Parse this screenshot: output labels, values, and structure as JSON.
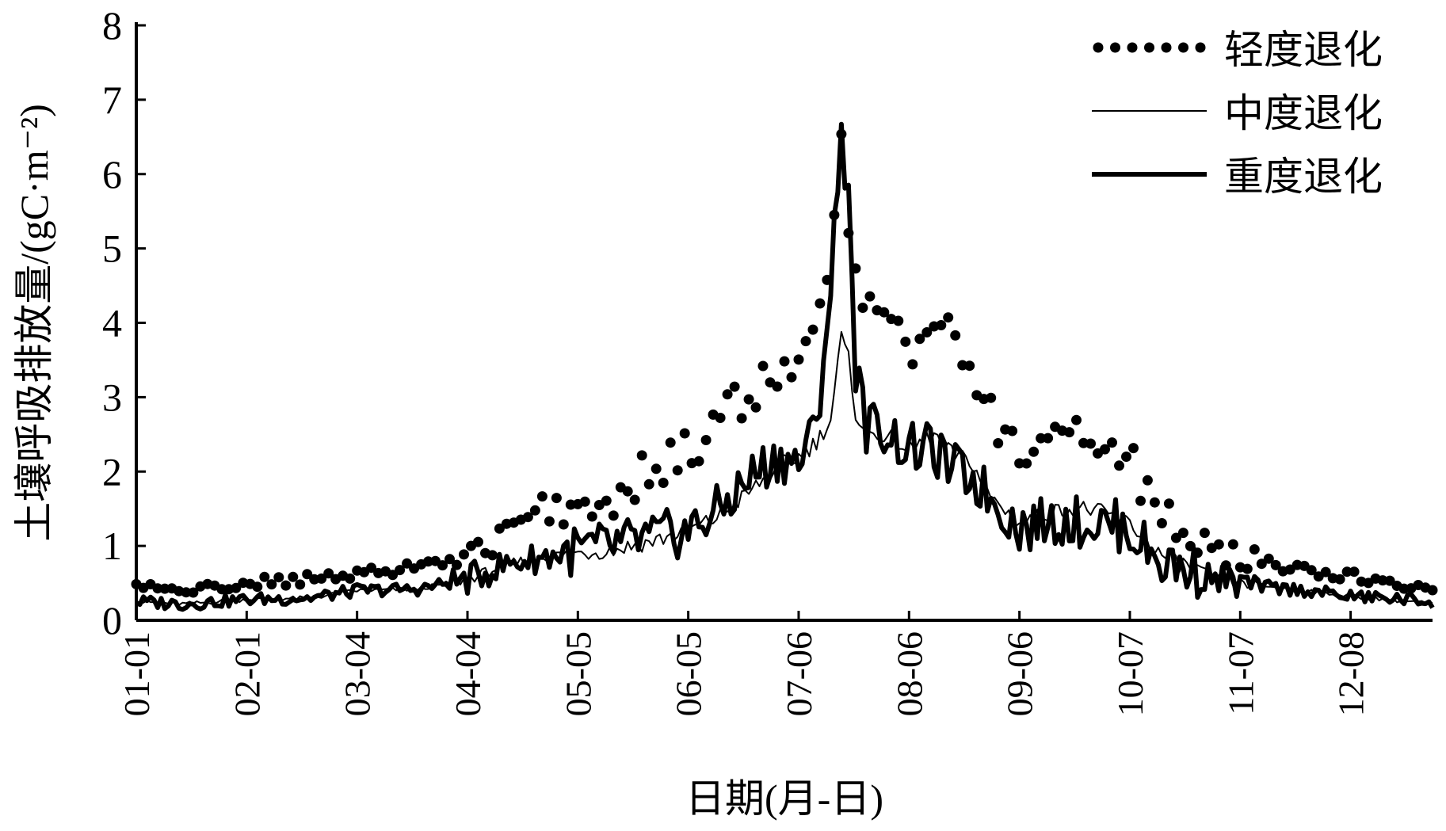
{
  "chart_data": {
    "type": "line",
    "title": "",
    "xlabel": "日期(月-日)",
    "ylabel": "土壤呼吸排放量/(gC·m⁻²)",
    "ylim": [
      0,
      8
    ],
    "yticks": [
      "0",
      "1",
      "2",
      "3",
      "4",
      "5",
      "6",
      "7",
      "8"
    ],
    "xticks": [
      "01-01",
      "02-01",
      "03-04",
      "04-04",
      "05-05",
      "06-05",
      "07-06",
      "08-06",
      "09-06",
      "10-07",
      "11-07",
      "12-08"
    ],
    "xtick_day_of_year": [
      1,
      32,
      63,
      94,
      125,
      156,
      187,
      218,
      249,
      280,
      311,
      342
    ],
    "xlim_day_of_year": [
      1,
      365
    ],
    "legend_position": "top-right",
    "grid": false,
    "series": [
      {
        "name": "轻度退化",
        "style": "dotted",
        "knots_day_of_year": [
          1,
          15,
          32,
          50,
          63,
          75,
          94,
          105,
          115,
          125,
          135,
          145,
          156,
          165,
          175,
          182,
          187,
          192,
          196,
          199,
          201,
          203,
          206,
          210,
          215,
          218,
          222,
          225,
          228,
          232,
          236,
          240,
          249,
          255,
          262,
          268,
          275,
          280,
          288,
          295,
          305,
          311,
          320,
          330,
          342,
          352,
          360,
          365
        ],
        "knots_value": [
          0.45,
          0.4,
          0.5,
          0.55,
          0.6,
          0.7,
          0.85,
          1.15,
          1.5,
          1.5,
          1.7,
          2.0,
          2.25,
          2.7,
          3.1,
          3.3,
          3.5,
          3.8,
          4.6,
          6.6,
          5.2,
          4.6,
          4.2,
          4.5,
          4.0,
          3.7,
          3.6,
          3.9,
          4.0,
          3.7,
          3.3,
          2.8,
          2.3,
          2.5,
          2.6,
          2.5,
          2.4,
          2.1,
          1.45,
          1.2,
          0.9,
          0.85,
          0.75,
          0.65,
          0.6,
          0.5,
          0.45,
          0.42
        ],
        "noise_amplitude": 0.3
      },
      {
        "name": "中度退化",
        "style": "thin",
        "knots_day_of_year": [
          1,
          15,
          32,
          50,
          63,
          80,
          94,
          105,
          115,
          125,
          135,
          145,
          156,
          165,
          175,
          182,
          187,
          192,
          196,
          199,
          201,
          203,
          206,
          210,
          215,
          218,
          222,
          225,
          228,
          232,
          236,
          240,
          249,
          255,
          262,
          268,
          275,
          280,
          288,
          295,
          305,
          311,
          320,
          330,
          342,
          352,
          360,
          365
        ],
        "knots_value": [
          0.25,
          0.22,
          0.28,
          0.3,
          0.4,
          0.42,
          0.55,
          0.75,
          0.85,
          0.9,
          0.95,
          1.05,
          1.2,
          1.4,
          1.8,
          2.1,
          2.2,
          2.4,
          2.7,
          3.8,
          3.5,
          2.8,
          2.5,
          2.5,
          2.4,
          2.3,
          2.4,
          2.5,
          2.3,
          2.2,
          2.1,
          1.7,
          1.3,
          1.4,
          1.5,
          1.5,
          1.4,
          1.3,
          0.9,
          0.75,
          0.55,
          0.5,
          0.45,
          0.4,
          0.32,
          0.28,
          0.25,
          0.22
        ],
        "noise_amplitude": 0.12
      },
      {
        "name": "重度退化",
        "style": "thick",
        "knots_day_of_year": [
          1,
          15,
          32,
          50,
          63,
          80,
          94,
          105,
          115,
          125,
          135,
          145,
          156,
          165,
          175,
          182,
          187,
          192,
          196,
          199,
          201,
          203,
          206,
          210,
          215,
          218,
          222,
          225,
          228,
          232,
          236,
          240,
          249,
          255,
          262,
          268,
          275,
          280,
          288,
          295,
          305,
          311,
          320,
          330,
          342,
          352,
          360,
          365
        ],
        "knots_value": [
          0.25,
          0.22,
          0.28,
          0.3,
          0.4,
          0.42,
          0.55,
          0.75,
          0.85,
          0.95,
          1.0,
          1.1,
          1.2,
          1.5,
          2.0,
          2.2,
          2.1,
          2.6,
          4.5,
          6.5,
          5.8,
          3.4,
          2.6,
          2.6,
          2.4,
          2.3,
          2.3,
          2.3,
          2.1,
          2.0,
          1.9,
          1.7,
          1.25,
          1.3,
          1.35,
          1.3,
          1.3,
          1.2,
          0.8,
          0.7,
          0.55,
          0.48,
          0.44,
          0.4,
          0.32,
          0.3,
          0.27,
          0.25
        ],
        "noise_amplitude": 0.35
      }
    ]
  }
}
